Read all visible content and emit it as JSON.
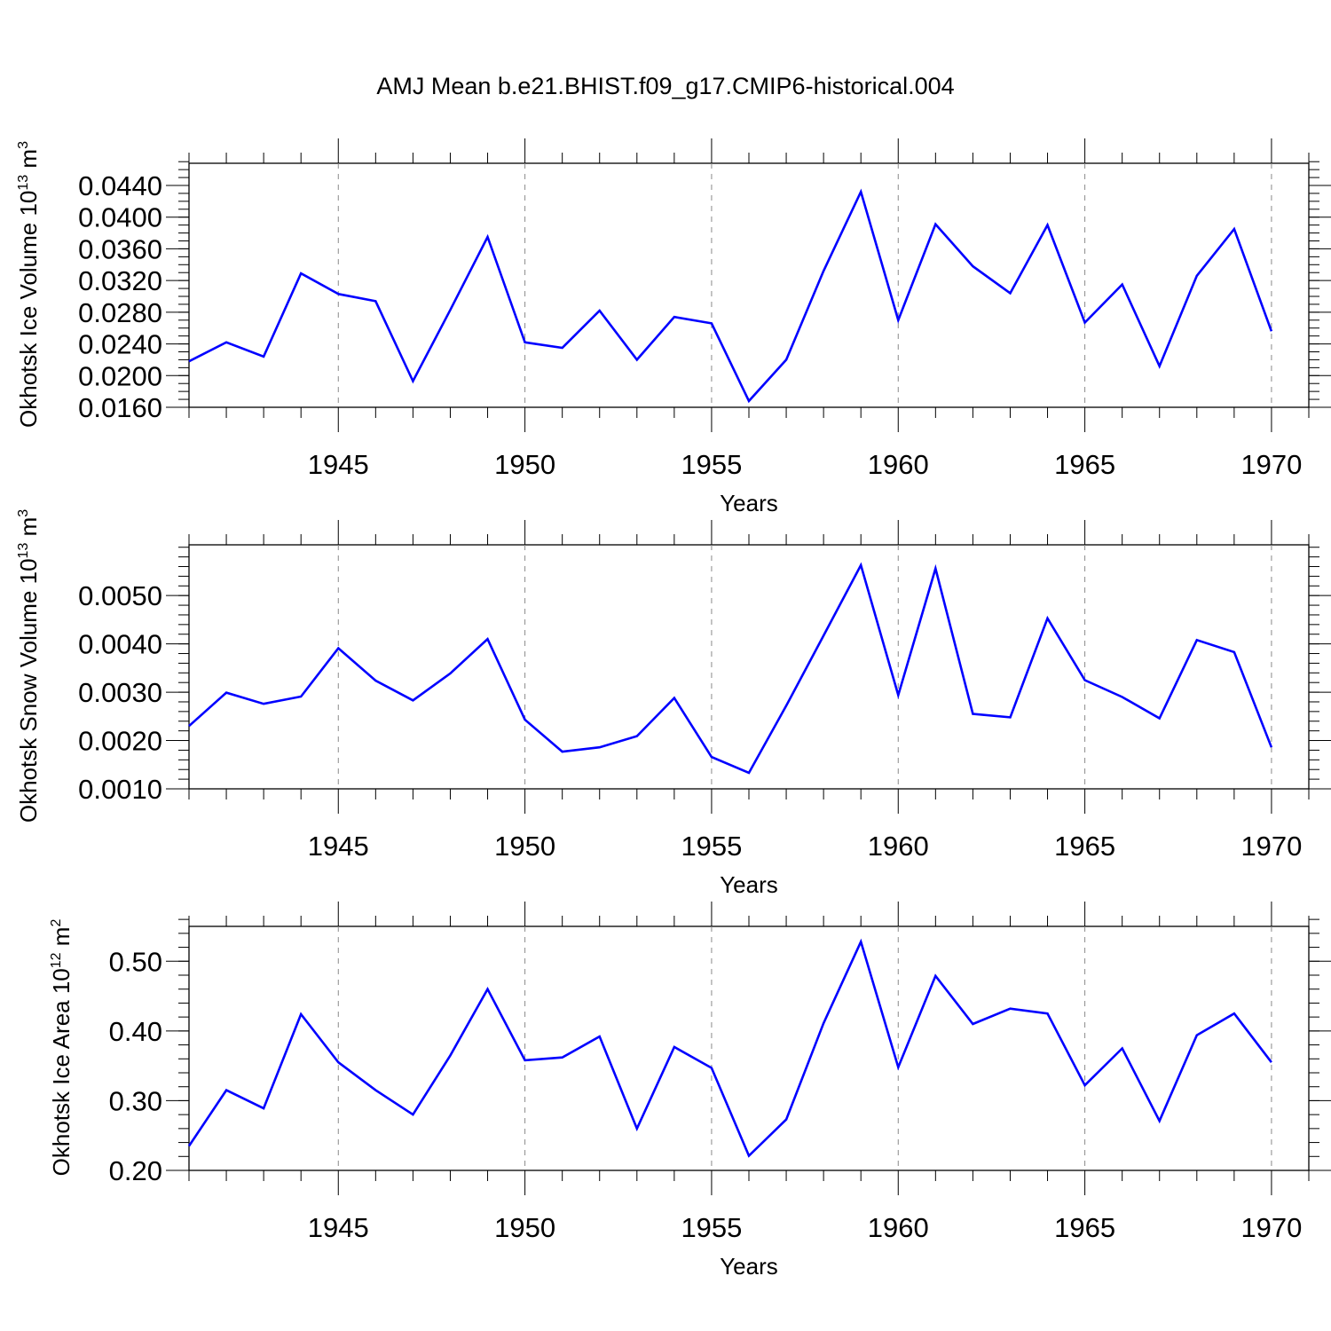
{
  "title": "AMJ Mean b.e21.BHIST.f09_g17.CMIP6-historical.004",
  "colors": {
    "line": "#0000ff",
    "axis": "#000000",
    "grid": "#8a8a8a"
  },
  "chart_data": [
    {
      "type": "line",
      "xlabel": "Years",
      "ylabel": {
        "text": "Okhotsk Ice Volume 10",
        "sup": "13",
        "unit": " m",
        "unit_sup": "3"
      },
      "xlim": [
        1941,
        1970
      ],
      "ylim": [
        0.016,
        0.0468
      ],
      "yticks": [
        0.016,
        0.02,
        0.024,
        0.028,
        0.032,
        0.036,
        0.04,
        0.044
      ],
      "ytick_labels": [
        "0.0160",
        "0.0200",
        "0.0240",
        "0.0280",
        "0.0320",
        "0.0360",
        "0.0400",
        "0.0440"
      ],
      "yminor_step": 0.001,
      "xticks": [
        1945,
        1950,
        1955,
        1960,
        1965,
        1970
      ],
      "grid": "vertical dashed at major x ticks",
      "x": [
        1941,
        1942,
        1943,
        1944,
        1945,
        1946,
        1947,
        1948,
        1949,
        1950,
        1951,
        1952,
        1953,
        1954,
        1955,
        1956,
        1957,
        1958,
        1959,
        1960,
        1961,
        1962,
        1963,
        1964,
        1965,
        1966,
        1967,
        1968,
        1969,
        1970
      ],
      "values": [
        0.0218,
        0.0242,
        0.0224,
        0.0329,
        0.0303,
        0.0294,
        0.0193,
        0.0283,
        0.0375,
        0.0242,
        0.0235,
        0.0282,
        0.022,
        0.0274,
        0.0266,
        0.0168,
        0.022,
        0.0332,
        0.0432,
        0.027,
        0.0391,
        0.0338,
        0.0304,
        0.039,
        0.0267,
        0.0315,
        0.0212,
        0.0326,
        0.0385,
        0.0256
      ]
    },
    {
      "type": "line",
      "xlabel": "Years",
      "ylabel": {
        "text": "Okhotsk Snow Volume 10",
        "sup": "13",
        "unit": " m",
        "unit_sup": "3"
      },
      "xlim": [
        1941,
        1970
      ],
      "ylim": [
        0.001,
        0.00605
      ],
      "yticks": [
        0.001,
        0.002,
        0.003,
        0.004,
        0.005
      ],
      "ytick_labels": [
        "0.0010",
        "0.0020",
        "0.0030",
        "0.0040",
        "0.0050"
      ],
      "yminor_step": 0.0002,
      "xticks": [
        1945,
        1950,
        1955,
        1960,
        1965,
        1970
      ],
      "grid": "vertical dashed at major x ticks",
      "x": [
        1941,
        1942,
        1943,
        1944,
        1945,
        1946,
        1947,
        1948,
        1949,
        1950,
        1951,
        1952,
        1953,
        1954,
        1955,
        1956,
        1957,
        1958,
        1959,
        1960,
        1961,
        1962,
        1963,
        1964,
        1965,
        1966,
        1967,
        1968,
        1969,
        1970
      ],
      "values": [
        0.0023,
        0.00299,
        0.00276,
        0.00291,
        0.00391,
        0.00324,
        0.00283,
        0.00339,
        0.0041,
        0.00243,
        0.00177,
        0.00186,
        0.00209,
        0.00288,
        0.00166,
        0.00133,
        0.00272,
        0.00417,
        0.00563,
        0.00294,
        0.00556,
        0.00255,
        0.00248,
        0.00453,
        0.00325,
        0.0029,
        0.00246,
        0.00408,
        0.00383,
        0.00186
      ]
    },
    {
      "type": "line",
      "xlabel": "Years",
      "ylabel": {
        "text": "Okhotsk Ice Area 10",
        "sup": "12",
        "unit": " m",
        "unit_sup": "2"
      },
      "xlim": [
        1941,
        1970
      ],
      "ylim": [
        0.2,
        0.55
      ],
      "yticks": [
        0.2,
        0.3,
        0.4,
        0.5
      ],
      "ytick_labels": [
        "0.20",
        "0.30",
        "0.40",
        "0.50"
      ],
      "yminor_step": 0.02,
      "xticks": [
        1945,
        1950,
        1955,
        1960,
        1965,
        1970
      ],
      "grid": "vertical dashed at major x ticks",
      "x": [
        1941,
        1942,
        1943,
        1944,
        1945,
        1946,
        1947,
        1948,
        1949,
        1950,
        1951,
        1952,
        1953,
        1954,
        1955,
        1956,
        1957,
        1958,
        1959,
        1960,
        1961,
        1962,
        1963,
        1964,
        1965,
        1966,
        1967,
        1968,
        1969,
        1970
      ],
      "values": [
        0.235,
        0.315,
        0.289,
        0.424,
        0.355,
        0.315,
        0.28,
        0.365,
        0.46,
        0.358,
        0.362,
        0.392,
        0.26,
        0.377,
        0.347,
        0.221,
        0.273,
        0.411,
        0.528,
        0.348,
        0.479,
        0.41,
        0.432,
        0.425,
        0.322,
        0.375,
        0.271,
        0.394,
        0.425,
        0.355
      ]
    }
  ]
}
